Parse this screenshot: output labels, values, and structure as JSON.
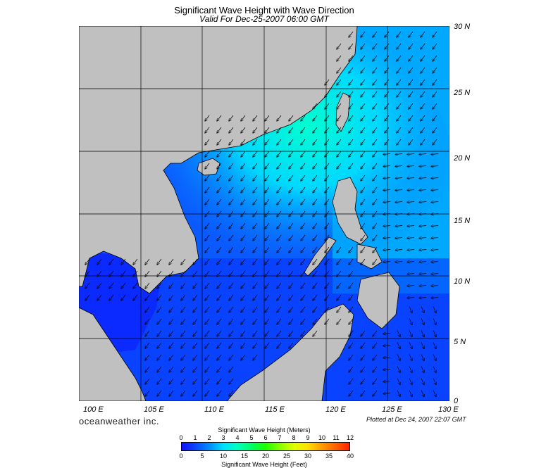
{
  "header": {
    "title": "Significant Wave Height with Wave Direction",
    "subtitle": "Valid For Dec-25-2007 06:00 GMT"
  },
  "map": {
    "lat_labels": [
      "30 N",
      "25 N",
      "20 N",
      "15 N",
      "10 N",
      "5 N",
      "0"
    ],
    "lon_labels": [
      "100 E",
      "105 E",
      "110 E",
      "115 E",
      "120 E",
      "125 E",
      "130 E"
    ],
    "colors": {
      "land": "#c0c0c0",
      "deep_blue": "#0a2dff",
      "mid_blue": "#0a6bff",
      "light_blue": "#00b8ff",
      "cyan": "#00e6ff",
      "aqua": "#00ffd8"
    }
  },
  "footer": {
    "brand": "oceanweather inc.",
    "plotted": "Plotted at Dec 24, 2007 22:07 GMT"
  },
  "legend": {
    "title_meters": "Significant Wave Height (Meters)",
    "title_feet": "Significant Wave Height (Feet)",
    "meter_ticks": [
      "0",
      "1",
      "2",
      "3",
      "4",
      "5",
      "6",
      "7",
      "8",
      "9",
      "10",
      "11",
      "12"
    ],
    "feet_ticks": [
      "0",
      "5",
      "10",
      "15",
      "20",
      "25",
      "30",
      "35",
      "40"
    ]
  }
}
